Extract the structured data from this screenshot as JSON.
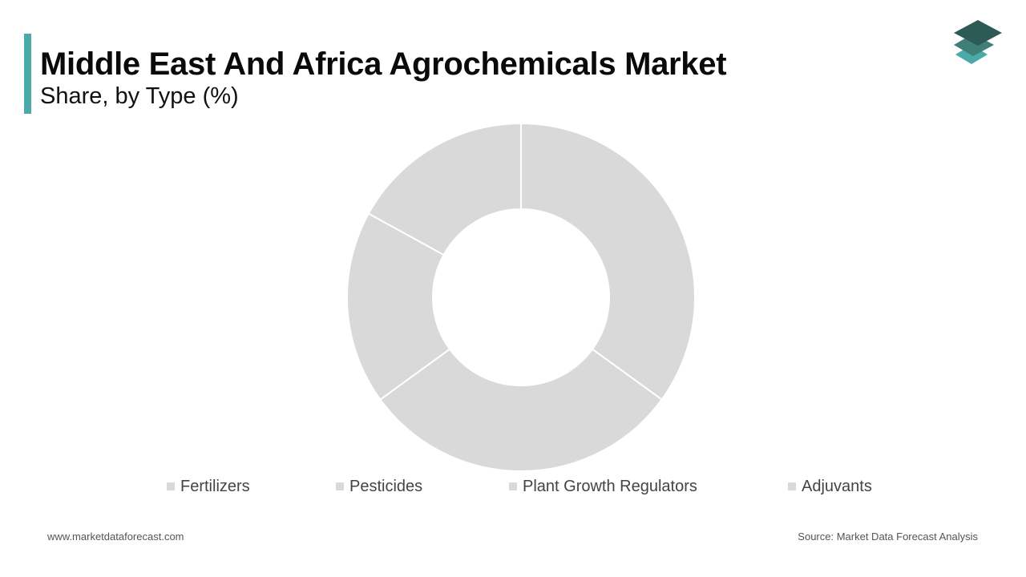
{
  "header": {
    "title": "Middle East And Africa Agrochemicals Market",
    "subtitle": "Share, by Type (%)"
  },
  "chart_data": {
    "type": "pie",
    "variant": "donut",
    "categories": [
      "Fertilizers",
      "Pesticides",
      "Plant Growth Regulators",
      "Adjuvants"
    ],
    "values": [
      35,
      30,
      18,
      17
    ],
    "unit": "%",
    "slice_colors": [
      "#d9d9d9",
      "#d9d9d9",
      "#d9d9d9",
      "#d9d9d9"
    ],
    "legend_position": "bottom",
    "data_labels": false
  },
  "footer": {
    "website": "www.marketdataforecast.com",
    "source": "Source: Market Data Forecast Analysis"
  },
  "colors": {
    "accent": "#4aa9a9",
    "slice": "#d9d9d9",
    "legend_text": "#444444"
  },
  "logo": {
    "icon": "stacked-layers-icon"
  }
}
